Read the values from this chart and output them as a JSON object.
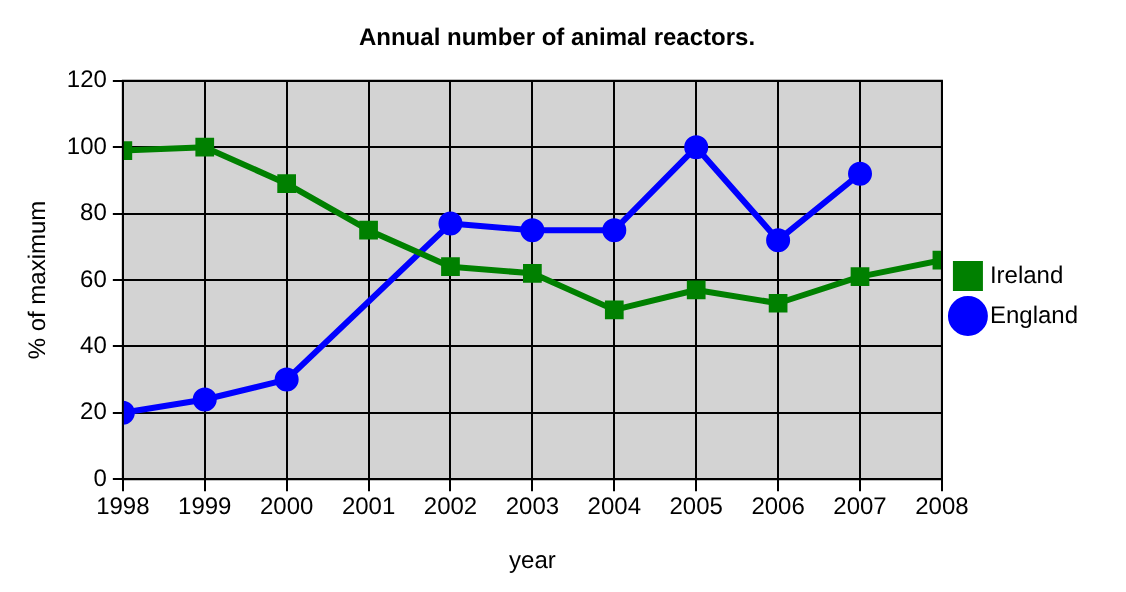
{
  "chart_data": {
    "type": "line",
    "title": "Annual number of animal reactors.",
    "xlabel": "year",
    "ylabel": "% of maximum",
    "x": [
      1998,
      1999,
      2000,
      2001,
      2002,
      2003,
      2004,
      2005,
      2006,
      2007,
      2008
    ],
    "series": [
      {
        "name": "Ireland",
        "color": "#008000",
        "marker": "square",
        "values": [
          99,
          100,
          89,
          75,
          64,
          62,
          51,
          57,
          53,
          61,
          66
        ]
      },
      {
        "name": "England",
        "color": "#0000ff",
        "marker": "circle",
        "values": [
          20,
          24,
          30,
          null,
          77,
          75,
          75,
          100,
          72,
          92,
          null
        ]
      }
    ],
    "xlim": [
      1998,
      2008
    ],
    "xticks": [
      1998,
      1999,
      2000,
      2001,
      2002,
      2003,
      2004,
      2005,
      2006,
      2007,
      2008
    ],
    "ylim": [
      0,
      120
    ],
    "yticks": [
      0,
      20,
      40,
      60,
      80,
      100,
      120
    ],
    "grid": true,
    "legend": "right",
    "line_style": "solid"
  }
}
